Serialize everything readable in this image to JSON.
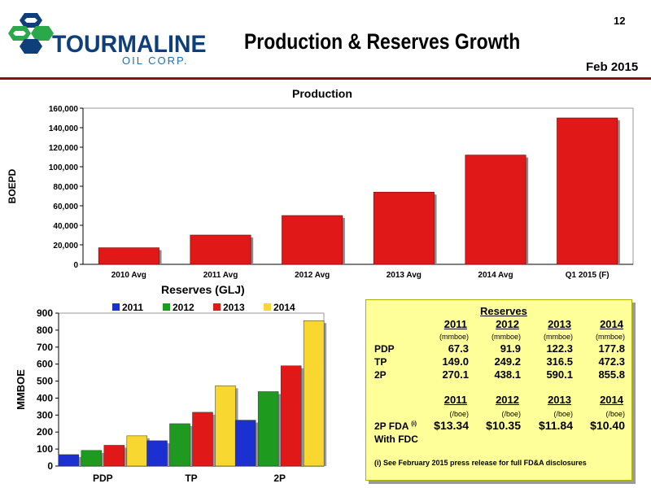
{
  "page_number": "12",
  "title": "Production & Reserves Growth",
  "date": "Feb 2015",
  "logo": {
    "name": "TOURMALINE",
    "sub": "OIL CORP."
  },
  "colors": {
    "rule": "#8b1010",
    "bar_red": "#e01818",
    "s2011": "#1c2fd0",
    "s2012": "#1e9a1e",
    "s2013": "#e01818",
    "s2014": "#f8d830",
    "box_bg": "#ffff99",
    "logo_blue": "#0f3f7a",
    "logo_green": "#2ba84a"
  },
  "chart_data": [
    {
      "type": "bar",
      "title": "Production",
      "ylabel": "BOEPD",
      "xlabel": "",
      "categories": [
        "2010 Avg",
        "2011 Avg",
        "2012 Avg",
        "2013 Avg",
        "2014 Avg",
        "Q1 2015 (F)"
      ],
      "values": [
        17000,
        30000,
        50000,
        74000,
        112000,
        150000
      ],
      "ylim": [
        0,
        160000
      ],
      "yticks": [
        "0",
        "20,000",
        "40,000",
        "60,000",
        "80,000",
        "100,000",
        "120,000",
        "140,000",
        "160,000"
      ],
      "ytick_values": [
        0,
        20000,
        40000,
        60000,
        80000,
        100000,
        120000,
        140000,
        160000
      ],
      "grid": false
    },
    {
      "type": "bar",
      "title": "Reserves (GLJ)",
      "ylabel": "MMBOE",
      "xlabel": "",
      "categories": [
        "PDP",
        "TP",
        "2P"
      ],
      "series": [
        {
          "name": "2011",
          "values": [
            67.3,
            149.0,
            270.1
          ]
        },
        {
          "name": "2012",
          "values": [
            91.9,
            249.2,
            438.1
          ]
        },
        {
          "name": "2013",
          "values": [
            122.3,
            316.5,
            590.1
          ]
        },
        {
          "name": "2014",
          "values": [
            177.8,
            472.3,
            855.8
          ]
        }
      ],
      "ylim": [
        0,
        900
      ],
      "yticks": [
        "0",
        "100",
        "200",
        "300",
        "400",
        "500",
        "600",
        "700",
        "800",
        "900"
      ],
      "ytick_values": [
        0,
        100,
        200,
        300,
        400,
        500,
        600,
        700,
        800,
        900
      ],
      "legend": "top",
      "grid": false
    }
  ],
  "reserves_table": {
    "title": "Reserves",
    "years": [
      "2011",
      "2012",
      "2013",
      "2014"
    ],
    "unit": "(mmboe)",
    "rows": [
      {
        "label": "PDP",
        "values": [
          "67.3",
          "91.9",
          "122.3",
          "177.8"
        ]
      },
      {
        "label": "TP",
        "values": [
          "149.0",
          "249.2",
          "316.5",
          "472.3"
        ]
      },
      {
        "label": "2P",
        "values": [
          "270.1",
          "438.1",
          "590.1",
          "855.8"
        ]
      }
    ],
    "fda_unit": "(/boe)",
    "fda_label": "2P FDA",
    "fda_superscript": "(i)",
    "fda_label2": "With FDC",
    "fda_values": [
      "$13.34",
      "$10.35",
      "$11.84",
      "$10.40"
    ],
    "footnote_marker": "(i)",
    "footnote": "See February 2015 press release for full FD&A disclosures"
  }
}
